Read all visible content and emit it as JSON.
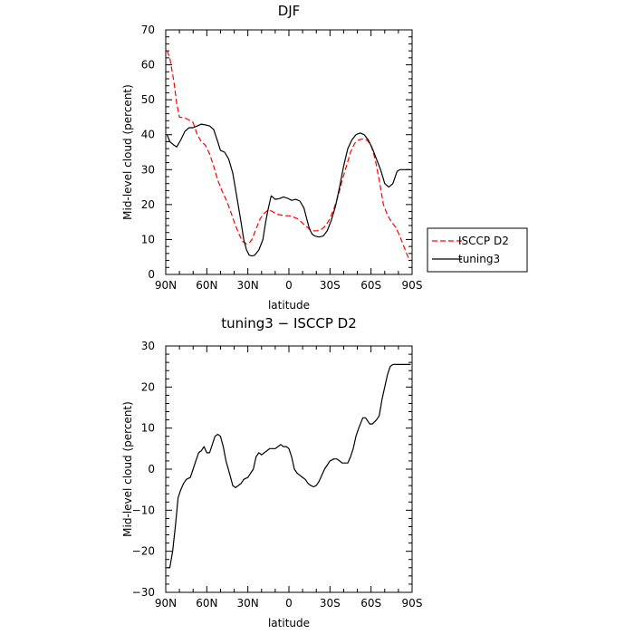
{
  "chart_data": [
    {
      "type": "line",
      "title": "DJF",
      "xlabel": "latitude",
      "ylabel": "Mid-level cloud (percent)",
      "xlim": [
        90,
        -90
      ],
      "ylim": [
        0,
        70
      ],
      "xticks": [
        90,
        60,
        30,
        0,
        -30,
        -60,
        -90
      ],
      "xtick_labels": [
        "90N",
        "60N",
        "30N",
        "0",
        "30S",
        "60S",
        "90S"
      ],
      "yticks": [
        0,
        10,
        20,
        30,
        40,
        50,
        60,
        70
      ],
      "ytick_labels": [
        "0",
        "10",
        "20",
        "30",
        "40",
        "50",
        "60",
        "70"
      ],
      "legend_position": "outside-right",
      "series": [
        {
          "name": "ISCCP D2",
          "color": "#ff0000",
          "dash": "dashed",
          "points": [
            [
              89,
              64
            ],
            [
              87,
              62
            ],
            [
              84,
              55
            ],
            [
              82,
              49
            ],
            [
              80,
              45
            ],
            [
              76,
              44.8
            ],
            [
              72,
              44
            ],
            [
              70,
              43.5
            ],
            [
              67,
              40
            ],
            [
              64,
              38
            ],
            [
              61,
              37
            ],
            [
              58,
              34.5
            ],
            [
              55,
              31
            ],
            [
              52,
              27
            ],
            [
              49,
              24
            ],
            [
              46,
              21.5
            ],
            [
              43,
              18.5
            ],
            [
              40,
              15
            ],
            [
              37,
              12
            ],
            [
              34,
              9.5
            ],
            [
              31,
              8.7
            ],
            [
              29,
              9
            ],
            [
              27,
              10
            ],
            [
              24,
              13
            ],
            [
              21,
              16
            ],
            [
              18,
              17.5
            ],
            [
              15,
              18.5
            ],
            [
              12,
              18
            ],
            [
              9,
              17.3
            ],
            [
              6,
              17
            ],
            [
              3,
              16.8
            ],
            [
              0,
              16.8
            ],
            [
              -3,
              16.5
            ],
            [
              -6,
              16
            ],
            [
              -9,
              15
            ],
            [
              -12,
              14
            ],
            [
              -15,
              13
            ],
            [
              -18,
              12.5
            ],
            [
              -21,
              12.5
            ],
            [
              -24,
              13
            ],
            [
              -27,
              14
            ],
            [
              -30,
              16
            ],
            [
              -33,
              19
            ],
            [
              -36,
              22.5
            ],
            [
              -39,
              27
            ],
            [
              -42,
              31
            ],
            [
              -45,
              35
            ],
            [
              -48,
              37.5
            ],
            [
              -51,
              38.5
            ],
            [
              -54,
              38.8
            ],
            [
              -57,
              38.5
            ],
            [
              -60,
              37
            ],
            [
              -63,
              33
            ],
            [
              -66,
              27
            ],
            [
              -69,
              20
            ],
            [
              -72,
              17
            ],
            [
              -75,
              15
            ],
            [
              -78,
              13.5
            ],
            [
              -81,
              11
            ],
            [
              -84,
              8
            ],
            [
              -87,
              5
            ],
            [
              -89,
              4
            ]
          ]
        },
        {
          "name": "tuning3",
          "color": "#000000",
          "dash": "solid",
          "points": [
            [
              89,
              40
            ],
            [
              87,
              38
            ],
            [
              84,
              37
            ],
            [
              82,
              36.5
            ],
            [
              79,
              38.5
            ],
            [
              76,
              41
            ],
            [
              73,
              42
            ],
            [
              70,
              42
            ],
            [
              67,
              42.5
            ],
            [
              64,
              43
            ],
            [
              61,
              42.8
            ],
            [
              58,
              42.5
            ],
            [
              55,
              41.5
            ],
            [
              52,
              38
            ],
            [
              50,
              35.5
            ],
            [
              47,
              35
            ],
            [
              44,
              33
            ],
            [
              41,
              29
            ],
            [
              38,
              22
            ],
            [
              35,
              15
            ],
            [
              33,
              10
            ],
            [
              31,
              7
            ],
            [
              29,
              5.5
            ],
            [
              27,
              5.3
            ],
            [
              25,
              5.5
            ],
            [
              22,
              7
            ],
            [
              19,
              10
            ],
            [
              17,
              15
            ],
            [
              15,
              19
            ],
            [
              13,
              22.5
            ],
            [
              10,
              21.5
            ],
            [
              7,
              21.7
            ],
            [
              4,
              22.2
            ],
            [
              1,
              21.8
            ],
            [
              -2,
              21.2
            ],
            [
              -5,
              21.5
            ],
            [
              -8,
              21
            ],
            [
              -11,
              19
            ],
            [
              -13,
              16
            ],
            [
              -15,
              13
            ],
            [
              -17,
              11.5
            ],
            [
              -19,
              11
            ],
            [
              -22,
              10.7
            ],
            [
              -25,
              11
            ],
            [
              -28,
              12.5
            ],
            [
              -31,
              15.5
            ],
            [
              -34,
              19.5
            ],
            [
              -37,
              25
            ],
            [
              -40,
              31
            ],
            [
              -43,
              36
            ],
            [
              -46,
              38.5
            ],
            [
              -49,
              40
            ],
            [
              -52,
              40.5
            ],
            [
              -55,
              40
            ],
            [
              -58,
              38.5
            ],
            [
              -61,
              36
            ],
            [
              -64,
              33
            ],
            [
              -67,
              30
            ],
            [
              -70,
              26
            ],
            [
              -73,
              25
            ],
            [
              -76,
              26
            ],
            [
              -79,
              29.5
            ],
            [
              -81,
              30
            ],
            [
              -84,
              30
            ],
            [
              -87,
              30
            ],
            [
              -89,
              30
            ]
          ]
        }
      ]
    },
    {
      "type": "line",
      "title": "tuning3 − ISCCP D2",
      "xlabel": "latitude",
      "ylabel": "Mid-level cloud (percent)",
      "xlim": [
        90,
        -90
      ],
      "ylim": [
        -30,
        30
      ],
      "xticks": [
        90,
        60,
        30,
        0,
        -30,
        -60,
        -90
      ],
      "xtick_labels": [
        "90N",
        "60N",
        "30N",
        "0",
        "30S",
        "60S",
        "90S"
      ],
      "yticks": [
        -30,
        -20,
        -10,
        0,
        10,
        20,
        30
      ],
      "ytick_labels": [
        "−30",
        "−20",
        "−10",
        "0",
        "10",
        "20",
        "30"
      ],
      "series": [
        {
          "color": "#000000",
          "dash": "solid",
          "points": [
            [
              89,
              -24
            ],
            [
              87,
              -24
            ],
            [
              85,
              -20
            ],
            [
              83,
              -14
            ],
            [
              81,
              -7
            ],
            [
              79,
              -5
            ],
            [
              77,
              -3.5
            ],
            [
              75,
              -2.5
            ],
            [
              72,
              -2
            ],
            [
              70,
              0
            ],
            [
              68,
              2
            ],
            [
              66,
              4
            ],
            [
              64,
              4.5
            ],
            [
              62,
              5.5
            ],
            [
              60,
              4
            ],
            [
              58,
              4
            ],
            [
              56,
              6
            ],
            [
              54,
              8
            ],
            [
              52,
              8.5
            ],
            [
              50,
              8
            ],
            [
              48,
              5.5
            ],
            [
              46,
              2
            ],
            [
              43,
              -1.5
            ],
            [
              41,
              -4
            ],
            [
              39,
              -4.5
            ],
            [
              37,
              -4
            ],
            [
              35,
              -3.5
            ],
            [
              33,
              -2.5
            ],
            [
              30,
              -2
            ],
            [
              28,
              -1
            ],
            [
              26,
              0
            ],
            [
              24,
              3
            ],
            [
              22,
              4
            ],
            [
              20,
              3.5
            ],
            [
              18,
              4
            ],
            [
              16,
              4.5
            ],
            [
              14,
              5
            ],
            [
              12,
              5
            ],
            [
              10,
              5
            ],
            [
              8,
              5.5
            ],
            [
              6,
              6
            ],
            [
              4,
              5.5
            ],
            [
              2,
              5.5
            ],
            [
              0,
              5
            ],
            [
              -2,
              3
            ],
            [
              -4,
              0
            ],
            [
              -6,
              -1
            ],
            [
              -8,
              -1.5
            ],
            [
              -10,
              -2
            ],
            [
              -12,
              -2.5
            ],
            [
              -14,
              -3.5
            ],
            [
              -16,
              -4
            ],
            [
              -18,
              -4.3
            ],
            [
              -20,
              -4
            ],
            [
              -22,
              -3
            ],
            [
              -24,
              -1.5
            ],
            [
              -26,
              0
            ],
            [
              -28,
              1
            ],
            [
              -30,
              2
            ],
            [
              -33,
              2.5
            ],
            [
              -35,
              2.5
            ],
            [
              -37,
              2
            ],
            [
              -39,
              1.5
            ],
            [
              -41,
              1.5
            ],
            [
              -43,
              1.5
            ],
            [
              -45,
              3
            ],
            [
              -47,
              5
            ],
            [
              -49,
              8
            ],
            [
              -51,
              10
            ],
            [
              -54,
              12.5
            ],
            [
              -56,
              12.5
            ],
            [
              -59,
              11
            ],
            [
              -61,
              11
            ],
            [
              -64,
              12
            ],
            [
              -66,
              13
            ],
            [
              -68,
              17
            ],
            [
              -70,
              20
            ],
            [
              -72,
              23
            ],
            [
              -74,
              25
            ],
            [
              -76,
              25.5
            ],
            [
              -89,
              25.5
            ]
          ]
        }
      ]
    }
  ]
}
